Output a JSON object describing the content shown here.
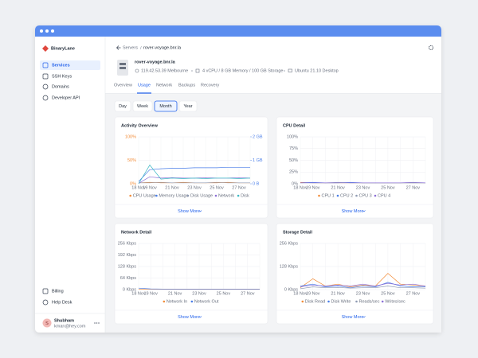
{
  "sidebar": {
    "brand": "BinaryLane",
    "nav": [
      "Services",
      "SSH Keys",
      "Domains",
      "Developer API"
    ],
    "bottom": [
      "Billing",
      "Help Desk"
    ],
    "user": {
      "initial": "S",
      "name": "Shubham",
      "email": "kman@hey.com"
    }
  },
  "header": {
    "breadcrumb": [
      "Servers",
      "rover-voyage.bnr.la"
    ],
    "title": "rover-voyage.bnr.la",
    "meta": [
      "119.42.53.39 Melbourne",
      "4 vCPU / 8 GB Memory / 100 GB Storage",
      "Ubuntu 21.10 Desktop"
    ],
    "tabs": [
      "Overview",
      "Usage",
      "Network",
      "Backups",
      "Recovery"
    ]
  },
  "periods": [
    "Day",
    "Week",
    "Month",
    "Year"
  ],
  "chart_data": [
    {
      "type": "line",
      "title": "Activity Overview",
      "link": "Show More",
      "categories": [
        "18 Nov",
        "19 Nov",
        null,
        "21 Nov",
        null,
        "23 Nov",
        null,
        "25 Nov",
        null,
        "27 Nov",
        null
      ],
      "ylim": [
        0,
        100
      ],
      "yticks": [
        {
          "value": 0,
          "label": "0%"
        },
        {
          "value": 50,
          "label": "50%"
        },
        {
          "value": 100,
          "label": "100%"
        }
      ],
      "y2lim": [
        0,
        2
      ],
      "y2ticks": [
        {
          "value": 0,
          "label": "0 B"
        },
        {
          "value": 1,
          "label": "1 GB"
        },
        {
          "value": 2,
          "label": "2 GB"
        }
      ],
      "grid": true,
      "series": [
        {
          "name": "CPU Usage",
          "color": "#f28c38",
          "values": [
            2,
            3,
            2,
            2,
            3,
            2,
            2,
            2,
            3,
            2,
            2
          ]
        },
        {
          "name": "Memory Usage",
          "color": "#4a7ee8",
          "values": [
            5,
            30,
            32,
            33,
            33,
            34,
            34,
            34,
            35,
            35,
            35
          ]
        },
        {
          "name": "Disk Usage",
          "color": "#8f9bb3",
          "values": [
            2,
            2,
            3,
            2,
            2,
            2,
            2,
            3,
            2,
            2,
            2
          ]
        },
        {
          "name": "Network",
          "color": "#8b6fd6",
          "values": [
            1,
            15,
            12,
            13,
            12,
            12,
            13,
            12,
            12,
            13,
            12
          ]
        },
        {
          "name": "Disk",
          "color": "#3bb8c4",
          "values": [
            0,
            40,
            10,
            12,
            11,
            12,
            11,
            12,
            12,
            11,
            12
          ]
        }
      ]
    },
    {
      "type": "line",
      "title": "CPU Detail",
      "link": "Show More",
      "categories": [
        "18 Nov",
        "19 Nov",
        null,
        "21 Nov",
        null,
        "23 Nov",
        null,
        "25 Nov",
        null,
        "27 Nov",
        null
      ],
      "ylim": [
        0,
        100
      ],
      "yticks": [
        {
          "value": 0,
          "label": "0%"
        },
        {
          "value": 25,
          "label": "25%"
        },
        {
          "value": 50,
          "label": "50%"
        },
        {
          "value": 75,
          "label": "75%"
        },
        {
          "value": 100,
          "label": "100%"
        }
      ],
      "grid": true,
      "series": [
        {
          "name": "CPU 1",
          "color": "#f28c38",
          "values": [
            3,
            2,
            2,
            2,
            2,
            2,
            2,
            2,
            2,
            2,
            2
          ]
        },
        {
          "name": "CPU 2",
          "color": "#4a7ee8",
          "values": [
            2,
            3,
            2,
            2,
            3,
            2,
            2,
            2,
            2,
            2,
            2
          ]
        },
        {
          "name": "CPU 3",
          "color": "#8f9bb3",
          "values": [
            2,
            2,
            2,
            3,
            2,
            2,
            2,
            2,
            2,
            2,
            2
          ]
        },
        {
          "name": "CPU 4",
          "color": "#8b6fd6",
          "values": [
            2,
            2,
            2,
            2,
            2,
            2,
            2,
            2,
            2,
            3,
            2
          ]
        }
      ]
    },
    {
      "type": "line",
      "title": "Network Detail",
      "link": "Show More",
      "categories": [
        "18 Nov",
        "19 Nov",
        null,
        "21 Nov",
        null,
        "23 Nov",
        null,
        "25 Nov",
        null,
        "27 Nov",
        null
      ],
      "ylim": [
        0,
        256
      ],
      "yticks": [
        {
          "value": 0,
          "label": "0 Kbps"
        },
        {
          "value": 64,
          "label": "64 Kbps"
        },
        {
          "value": 128,
          "label": "128 Kbps"
        },
        {
          "value": 192,
          "label": "192 Kbps"
        },
        {
          "value": 256,
          "label": "256 Kbps"
        }
      ],
      "grid": true,
      "series": [
        {
          "name": "Network In",
          "color": "#f28c38",
          "values": [
            3,
            2,
            2,
            2,
            2,
            2,
            2,
            2,
            2,
            2,
            2
          ]
        },
        {
          "name": "Network Out",
          "color": "#4a7ee8",
          "values": [
            8,
            4,
            3,
            3,
            3,
            3,
            3,
            3,
            3,
            3,
            3
          ]
        }
      ]
    },
    {
      "type": "line",
      "title": "Storage Detail",
      "link": "Show More",
      "categories": [
        "18 Nov",
        "19 Nov",
        null,
        "21 Nov",
        null,
        "23 Nov",
        null,
        "25 Nov",
        null,
        "27 Nov",
        null
      ],
      "ylim": [
        0,
        256
      ],
      "yticks": [
        {
          "value": 0,
          "label": "0 Kbps"
        },
        {
          "value": 128,
          "label": "128 Kbps"
        },
        {
          "value": 256,
          "label": "256 Kbps"
        }
      ],
      "grid": true,
      "series": [
        {
          "name": "Disk Read",
          "color": "#f28c38",
          "values": [
            10,
            60,
            20,
            30,
            15,
            25,
            20,
            90,
            30,
            25,
            20
          ]
        },
        {
          "name": "Disk Write",
          "color": "#4a7ee8",
          "values": [
            20,
            30,
            15,
            20,
            10,
            20,
            15,
            40,
            20,
            15,
            15
          ]
        },
        {
          "name": "Reads/sec",
          "color": "#8f9bb3",
          "values": [
            5,
            15,
            10,
            12,
            8,
            10,
            10,
            20,
            10,
            10,
            8
          ]
        },
        {
          "name": "Writes/sec",
          "color": "#8b6fd6",
          "values": [
            15,
            25,
            20,
            25,
            20,
            30,
            20,
            35,
            25,
            30,
            20
          ]
        }
      ]
    }
  ]
}
